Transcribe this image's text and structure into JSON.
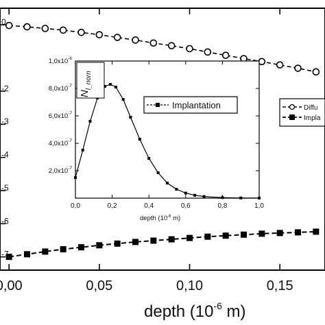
{
  "chart_data": [
    {
      "type": "line",
      "role": "main",
      "xlabel_main": "depth (10",
      "xlabel_exp": "-6",
      "xlabel_tail": " m)",
      "xlim": [
        -0.005,
        0.175
      ],
      "ylim": [
        -7.4,
        0.5
      ],
      "y_scale": "log",
      "x_ticks": [
        0.0,
        0.05,
        0.1,
        0.15
      ],
      "x_tick_labels": [
        "0,00",
        "0,05",
        "0,10",
        "0,15"
      ],
      "y_ticks": [
        0,
        -2,
        -3,
        -4,
        -5,
        -6,
        -7
      ],
      "y_tick_labels": [
        "0",
        "-2",
        "-3",
        "-4",
        "-5",
        "-6",
        "-7"
      ],
      "y_tick_base": "0",
      "legend": [
        "Diffu",
        "Impla"
      ],
      "series": [
        {
          "name": "Diffu",
          "marker": "open-circle",
          "x": [
            0.0,
            0.01,
            0.02,
            0.03,
            0.04,
            0.05,
            0.06,
            0.07,
            0.08,
            0.09,
            0.1,
            0.11,
            0.12,
            0.13,
            0.14,
            0.15,
            0.16,
            0.17
          ],
          "y": [
            -0.02,
            -0.06,
            -0.11,
            -0.16,
            -0.23,
            -0.3,
            -0.38,
            -0.46,
            -0.55,
            -0.63,
            -0.72,
            -0.82,
            -0.92,
            -1.02,
            -1.11,
            -1.21,
            -1.31,
            -1.42
          ]
        },
        {
          "name": "Impla",
          "marker": "filled-square",
          "x": [
            0.0,
            0.01,
            0.02,
            0.03,
            0.04,
            0.05,
            0.06,
            0.07,
            0.08,
            0.09,
            0.1,
            0.11,
            0.12,
            0.13,
            0.14,
            0.15,
            0.16,
            0.17
          ],
          "y": [
            -7.0,
            -6.92,
            -6.84,
            -6.77,
            -6.71,
            -6.65,
            -6.6,
            -6.55,
            -6.51,
            -6.47,
            -6.43,
            -6.39,
            -6.36,
            -6.33,
            -6.3,
            -6.28,
            -6.26,
            -6.24
          ]
        }
      ]
    },
    {
      "type": "line",
      "role": "inset",
      "ylabel": "N",
      "ylabel_sub": "l_norn",
      "xlabel_main": "depth (10",
      "xlabel_exp": "-6",
      "xlabel_tail": " m)",
      "xlim": [
        0.0,
        1.0
      ],
      "ylim": [
        0.0,
        1e-06
      ],
      "x_ticks": [
        0.0,
        0.2,
        0.4,
        0.6,
        0.8,
        1.0
      ],
      "x_tick_labels": [
        "0,0",
        "0,2",
        "0,4",
        "0,6",
        "0,8",
        "1,0"
      ],
      "y_ticks": [
        2e-07,
        4e-07,
        6e-07,
        8e-07,
        1e-06
      ],
      "y_tick_mantissa": [
        "2,0x10",
        "4,0x10",
        "6,0x10",
        "8,0x10",
        "1,0x10"
      ],
      "y_tick_exp": [
        "-7",
        "-7",
        "-7",
        "-7",
        "-6"
      ],
      "legend": [
        "Implantation"
      ],
      "series": [
        {
          "name": "Implantation",
          "marker": "filled-square",
          "x": [
            0.0,
            0.04,
            0.08,
            0.12,
            0.16,
            0.19,
            0.22,
            0.26,
            0.3,
            0.35,
            0.4,
            0.45,
            0.5,
            0.55,
            0.6,
            0.65,
            0.7,
            0.8,
            0.9,
            1.0
          ],
          "y": [
            1.5e-07,
            3.5e-07,
            5.6e-07,
            7.3e-07,
            8.15e-07,
            8.3e-07,
            8.1e-07,
            7.2e-07,
            5.9e-07,
            4.3e-07,
            2.9e-07,
            1.85e-07,
            1.1e-07,
            6.5e-08,
            3.7e-08,
            2.1e-08,
            1.2e-08,
            4e-09,
            1.5e-09,
            5e-10
          ]
        }
      ]
    }
  ]
}
